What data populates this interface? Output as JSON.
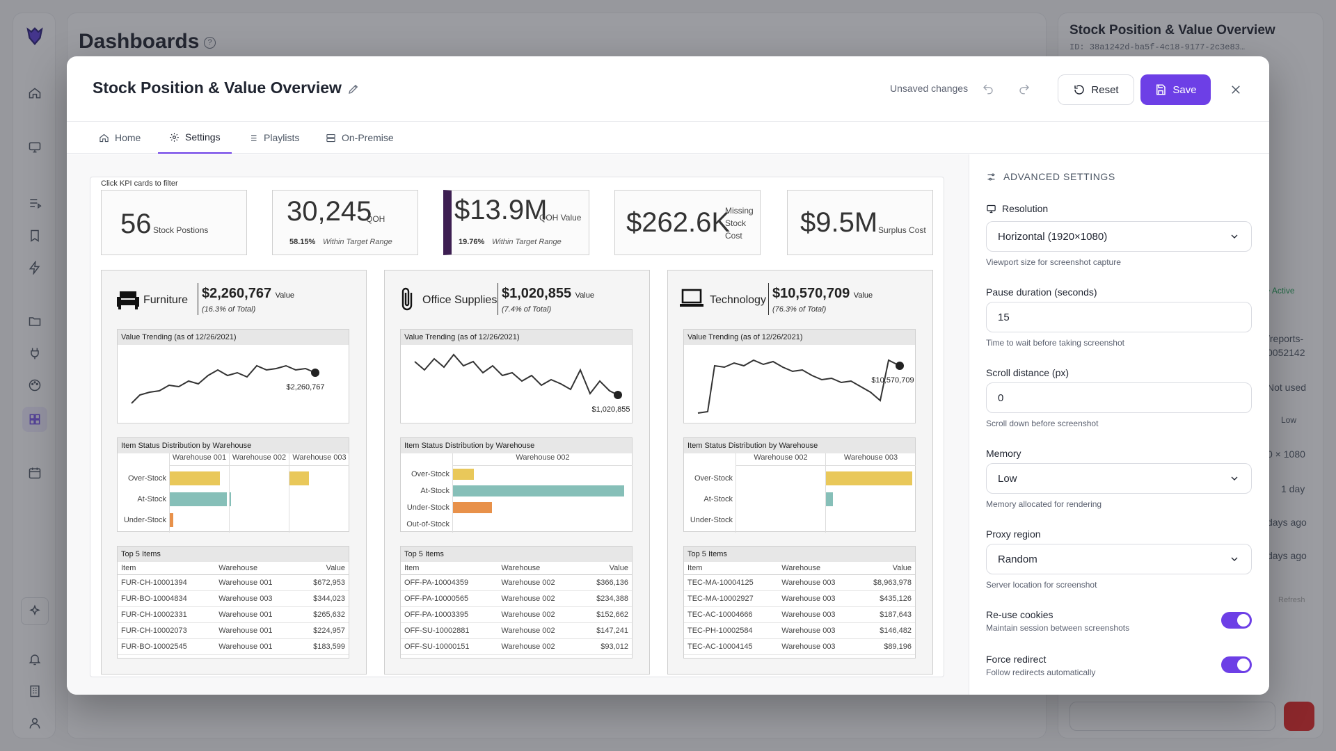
{
  "background": {
    "title": "Dashboards",
    "help_icon": "?",
    "right_panel": {
      "title": "Stock Position & Value Overview",
      "id": "ID: 38a1242d-ba5f-4c18-9177-2c3e83…",
      "status": "• Active",
      "path": "/reports-",
      "path2": "0052142",
      "used": "Not used",
      "memory": "Low",
      "res": "0 × 1080",
      "dur": "1 day",
      "ago1": "days ago",
      "ago2": "days ago",
      "refresh": "Refresh"
    }
  },
  "modal": {
    "title": "Stock Position & Value Overview",
    "unsaved": "Unsaved changes",
    "reset_label": "Reset",
    "save_label": "Save",
    "tabs": [
      {
        "label": "Home",
        "icon": "home-icon"
      },
      {
        "label": "Settings",
        "icon": "gear-icon"
      },
      {
        "label": "Playlists",
        "icon": "list-icon"
      },
      {
        "label": "On-Premise",
        "icon": "server-icon"
      }
    ]
  },
  "dashboard": {
    "hint": "Click KPI cards to filter",
    "kpis": [
      {
        "value": "56",
        "label": "Stock Postions"
      },
      {
        "value": "30,245",
        "label": "QOH",
        "pct": "58.15%",
        "note": "Within Target Range"
      },
      {
        "value": "$13.9M",
        "label": "QOH Value",
        "pct": "19.76%",
        "note": "Within Target Range"
      },
      {
        "value": "$262.6K",
        "label1": "Missing",
        "label2": "Stock",
        "label3": "Cost"
      },
      {
        "value": "$9.5M",
        "label": "Surplus Cost"
      }
    ],
    "panels": [
      {
        "name": "Furniture",
        "value": "$2,260,767",
        "value_label": "Value",
        "pct": "(16.3% of Total)",
        "trend_title": "Value Trending (as of 12/26/2021)",
        "trend_end": "$2,260,767",
        "dist_title": "Item Status Distribution by Warehouse",
        "warehouses": [
          "Warehouse 001",
          "Warehouse 002",
          "Warehouse 003"
        ],
        "statuses": [
          "Over-Stock",
          "At-Stock",
          "Under-Stock"
        ],
        "top_title": "Top 5 Items",
        "cols": [
          "Item",
          "Warehouse",
          "Value"
        ],
        "rows": [
          [
            "FUR-CH-10001394",
            "Warehouse 001",
            "$672,953"
          ],
          [
            "FUR-BO-10004834",
            "Warehouse 003",
            "$344,023"
          ],
          [
            "FUR-CH-10002331",
            "Warehouse 001",
            "$265,632"
          ],
          [
            "FUR-CH-10002073",
            "Warehouse 001",
            "$224,957"
          ],
          [
            "FUR-BO-10002545",
            "Warehouse 001",
            "$183,599"
          ]
        ]
      },
      {
        "name": "Office Supplies",
        "value": "$1,020,855",
        "value_label": "Value",
        "pct": "(7.4% of Total)",
        "trend_title": "Value Trending (as of 12/26/2021)",
        "trend_end": "$1,020,855",
        "dist_title": "Item Status Distribution by Warehouse",
        "warehouses": [
          "Warehouse 002"
        ],
        "statuses": [
          "Over-Stock",
          "At-Stock",
          "Under-Stock",
          "Out-of-Stock"
        ],
        "top_title": "Top 5 Items",
        "cols": [
          "Item",
          "Warehouse",
          "Value"
        ],
        "rows": [
          [
            "OFF-PA-10004359",
            "Warehouse 002",
            "$366,136"
          ],
          [
            "OFF-PA-10000565",
            "Warehouse 002",
            "$234,388"
          ],
          [
            "OFF-PA-10003395",
            "Warehouse 002",
            "$152,662"
          ],
          [
            "OFF-SU-10002881",
            "Warehouse 002",
            "$147,241"
          ],
          [
            "OFF-SU-10000151",
            "Warehouse 002",
            "$93,012"
          ]
        ]
      },
      {
        "name": "Technology",
        "value": "$10,570,709",
        "value_label": "Value",
        "pct": "(76.3% of Total)",
        "trend_title": "Value Trending (as of 12/26/2021)",
        "trend_end": "$10,570,709",
        "dist_title": "Item Status Distribution by Warehouse",
        "warehouses": [
          "Warehouse 002",
          "Warehouse 003"
        ],
        "statuses": [
          "Over-Stock",
          "At-Stock",
          "Under-Stock"
        ],
        "top_title": "Top 5 Items",
        "cols": [
          "Item",
          "Warehouse",
          "Value"
        ],
        "rows": [
          [
            "TEC-MA-10004125",
            "Warehouse 003",
            "$8,963,978"
          ],
          [
            "TEC-MA-10002927",
            "Warehouse 003",
            "$435,126"
          ],
          [
            "TEC-AC-10004666",
            "Warehouse 003",
            "$187,643"
          ],
          [
            "TEC-PH-10002584",
            "Warehouse 003",
            "$146,482"
          ],
          [
            "TEC-AC-10004145",
            "Warehouse 003",
            "$89,196"
          ]
        ]
      }
    ]
  },
  "settings": {
    "heading": "ADVANCED SETTINGS",
    "resolution": {
      "label": "Resolution",
      "value": "Horizontal (1920×1080)",
      "help": "Viewport size for screenshot capture"
    },
    "pause": {
      "label": "Pause duration (seconds)",
      "value": "15",
      "help": "Time to wait before taking screenshot"
    },
    "scroll": {
      "label": "Scroll distance (px)",
      "value": "0",
      "help": "Scroll down before screenshot"
    },
    "memory": {
      "label": "Memory",
      "value": "Low",
      "help": "Memory allocated for rendering"
    },
    "proxy": {
      "label": "Proxy region",
      "value": "Random",
      "help": "Server location for screenshot"
    },
    "cookies": {
      "label": "Re-use cookies",
      "help": "Maintain session between screenshots",
      "on": true
    },
    "redirect": {
      "label": "Force redirect",
      "help": "Follow redirects automatically",
      "on": true
    }
  }
}
